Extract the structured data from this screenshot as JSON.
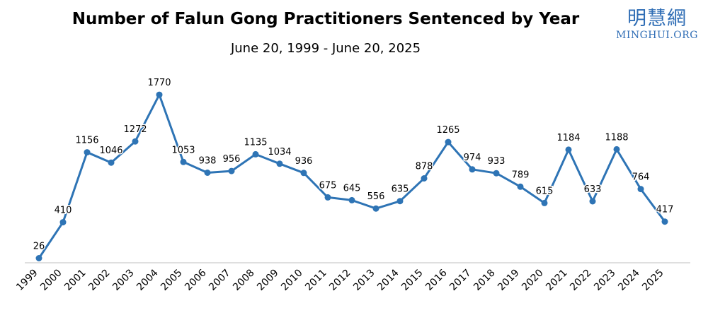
{
  "logo": {
    "cjk": "明慧網",
    "latin": "MINGHUI.ORG"
  },
  "colors": {
    "line": "#2e74b5",
    "accent": "#2f6db5",
    "axis": "#bfbfbf"
  },
  "chart_data": {
    "type": "line",
    "title": "Number of Falun Gong Practitioners Sentenced by Year",
    "subtitle": "June 20, 1999 - June 20, 2025",
    "xlabel": "",
    "ylabel": "",
    "categories": [
      "1999",
      "2000",
      "2001",
      "2002",
      "2003",
      "2004",
      "2005",
      "2006",
      "2007",
      "2008",
      "2009",
      "2010",
      "2011",
      "2012",
      "2013",
      "2014",
      "2015",
      "2016",
      "2017",
      "2018",
      "2019",
      "2020",
      "2021",
      "2022",
      "2023",
      "2024",
      "2025"
    ],
    "values": [
      26,
      410,
      1156,
      1046,
      1272,
      1770,
      1053,
      938,
      956,
      1135,
      1034,
      936,
      675,
      645,
      556,
      635,
      878,
      1265,
      974,
      933,
      789,
      615,
      1184,
      633,
      1188,
      764,
      417
    ],
    "ylim": [
      0,
      2000
    ],
    "grid": false,
    "legend": "none"
  }
}
